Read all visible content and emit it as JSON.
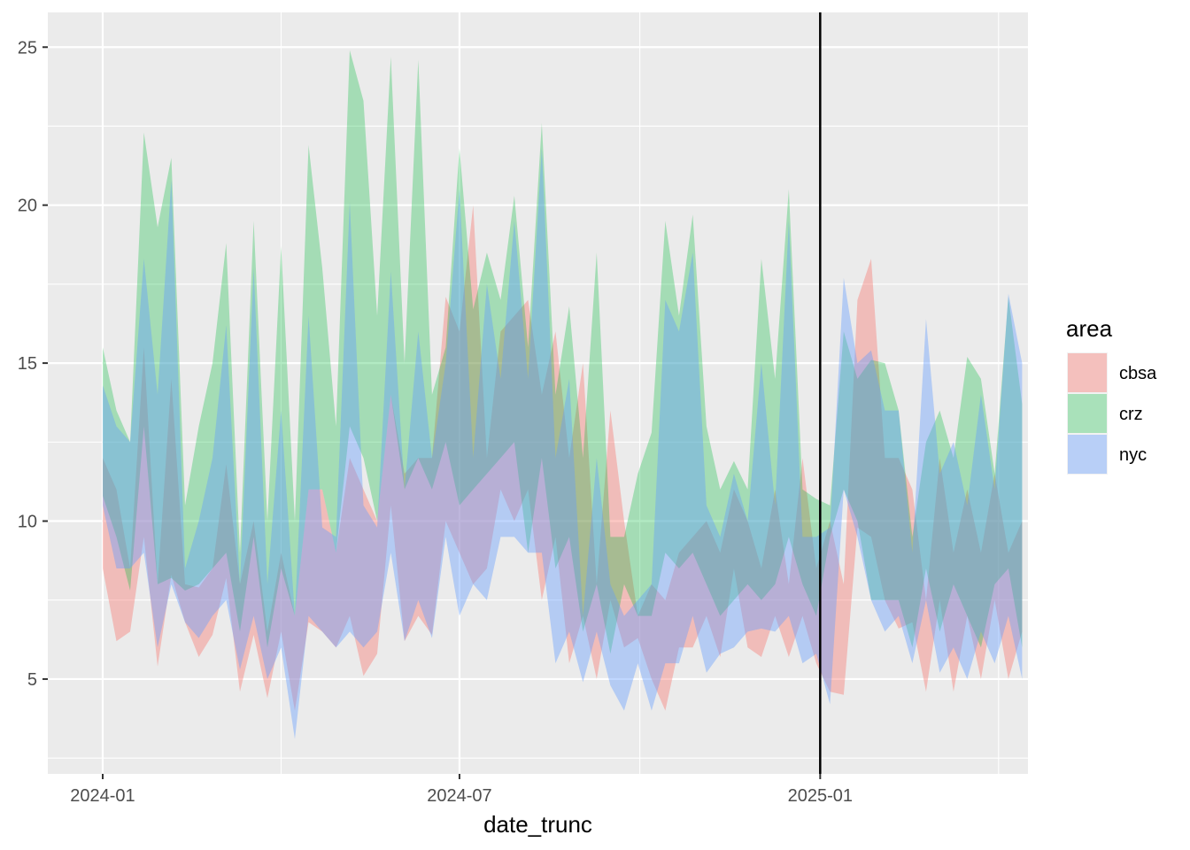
{
  "chart_data": {
    "type": "area",
    "subtype": "ribbon",
    "title": "",
    "xlabel": "date_trunc",
    "ylabel": "",
    "xlim": [
      "2023-12-04",
      "2025-04-17"
    ],
    "ylim": [
      2.0,
      26.1
    ],
    "x_ticks": [
      "2024-01-01",
      "2024-07-01",
      "2025-01-01"
    ],
    "x_tick_labels": [
      "2024-01",
      "2024-07",
      "2025-01"
    ],
    "y_ticks": [
      5,
      10,
      15,
      20,
      25
    ],
    "y_tick_labels": [
      "5",
      "10",
      "15",
      "20",
      "25"
    ],
    "grid": true,
    "panel_background": "#EBEBEB",
    "vline": {
      "x": "2025-01-01",
      "color": "#000000"
    },
    "legend": {
      "title": "area",
      "position": "right"
    },
    "series": [
      {
        "name": "cbsa",
        "color": "#F8766D",
        "alpha": 0.4,
        "points": [
          [
            "2024-01-01",
            8.5,
            12.0
          ],
          [
            "2024-01-08",
            6.2,
            11.0
          ],
          [
            "2024-01-15",
            6.5,
            8.5
          ],
          [
            "2024-01-22",
            9.5,
            15.5
          ],
          [
            "2024-01-29",
            5.4,
            8.0
          ],
          [
            "2024-02-05",
            8.3,
            14.5
          ],
          [
            "2024-02-12",
            6.8,
            8.0
          ],
          [
            "2024-02-19",
            5.7,
            7.9
          ],
          [
            "2024-02-26",
            6.4,
            8.5
          ],
          [
            "2024-03-04",
            8.2,
            11.8
          ],
          [
            "2024-03-11",
            4.6,
            8.0
          ],
          [
            "2024-03-18",
            6.4,
            10.0
          ],
          [
            "2024-03-25",
            4.4,
            6.5
          ],
          [
            "2024-04-01",
            6.5,
            9.0
          ],
          [
            "2024-04-08",
            4.0,
            7.0
          ],
          [
            "2024-04-15",
            6.8,
            11.0
          ],
          [
            "2024-04-22",
            6.5,
            11.0
          ],
          [
            "2024-04-29",
            6.0,
            9.0
          ],
          [
            "2024-05-06",
            7.0,
            12.0
          ],
          [
            "2024-05-13",
            5.1,
            11.0
          ],
          [
            "2024-05-20",
            5.8,
            10.0
          ],
          [
            "2024-05-27",
            10.5,
            14.0
          ],
          [
            "2024-06-03",
            6.2,
            11.5
          ],
          [
            "2024-06-10",
            7.0,
            12.0
          ],
          [
            "2024-06-17",
            6.4,
            12.0
          ],
          [
            "2024-06-24",
            10.0,
            17.1
          ],
          [
            "2024-07-01",
            9.0,
            16.0
          ],
          [
            "2024-07-08",
            8.0,
            20.0
          ],
          [
            "2024-07-15",
            8.5,
            12.0
          ],
          [
            "2024-07-22",
            11.0,
            16.0
          ],
          [
            "2024-07-29",
            10.0,
            16.5
          ],
          [
            "2024-08-05",
            11.0,
            17.0
          ],
          [
            "2024-08-12",
            7.5,
            14.0
          ],
          [
            "2024-08-19",
            9.5,
            16.0
          ],
          [
            "2024-08-26",
            5.5,
            12.0
          ],
          [
            "2024-09-02",
            7.0,
            15.0
          ],
          [
            "2024-09-09",
            5.0,
            8.0
          ],
          [
            "2024-09-16",
            7.5,
            13.5
          ],
          [
            "2024-09-23",
            6.0,
            10.0
          ],
          [
            "2024-09-30",
            6.3,
            7.0
          ],
          [
            "2024-10-07",
            5.0,
            8.0
          ],
          [
            "2024-10-14",
            4.0,
            7.5
          ],
          [
            "2024-10-21",
            6.0,
            9.0
          ],
          [
            "2024-10-28",
            6.0,
            9.5
          ],
          [
            "2024-11-04",
            7.0,
            10.0
          ],
          [
            "2024-11-11",
            5.7,
            9.0
          ],
          [
            "2024-11-18",
            8.5,
            11.0
          ],
          [
            "2024-11-25",
            6.0,
            10.0
          ],
          [
            "2024-12-02",
            5.7,
            8.5
          ],
          [
            "2024-12-09",
            7.0,
            11.0
          ],
          [
            "2024-12-16",
            5.7,
            8.0
          ],
          [
            "2024-12-23",
            7.0,
            12.0
          ],
          [
            "2024-12-30",
            5.5,
            8.5
          ],
          [
            "2025-01-06",
            4.6,
            10.0
          ],
          [
            "2025-01-13",
            4.5,
            8.0
          ],
          [
            "2025-01-20",
            9.8,
            17.0
          ],
          [
            "2025-01-27",
            9.5,
            18.3
          ],
          [
            "2025-02-03",
            7.5,
            12.0
          ],
          [
            "2025-02-10",
            6.6,
            12.0
          ],
          [
            "2025-02-17",
            6.8,
            11.0
          ],
          [
            "2025-02-24",
            4.6,
            7.5
          ],
          [
            "2025-03-03",
            7.5,
            12.0
          ],
          [
            "2025-03-10",
            4.6,
            9.0
          ],
          [
            "2025-03-17",
            7.0,
            11.0
          ],
          [
            "2025-03-24",
            5.0,
            9.0
          ],
          [
            "2025-03-31",
            7.5,
            11.5
          ],
          [
            "2025-04-07",
            5.0,
            9.0
          ],
          [
            "2025-04-14",
            6.5,
            10.0
          ]
        ]
      },
      {
        "name": "crz",
        "color": "#00BA38",
        "alpha": 0.3,
        "points": [
          [
            "2024-01-01",
            10.8,
            15.5
          ],
          [
            "2024-01-08",
            9.5,
            13.5
          ],
          [
            "2024-01-15",
            7.8,
            12.5
          ],
          [
            "2024-01-22",
            13.0,
            22.3
          ],
          [
            "2024-01-29",
            8.0,
            19.3
          ],
          [
            "2024-02-05",
            8.2,
            21.5
          ],
          [
            "2024-02-12",
            7.8,
            10.5
          ],
          [
            "2024-02-19",
            8.0,
            13.0
          ],
          [
            "2024-02-26",
            8.5,
            15.0
          ],
          [
            "2024-03-04",
            9.0,
            18.8
          ],
          [
            "2024-03-11",
            6.5,
            9.0
          ],
          [
            "2024-03-18",
            9.5,
            19.5
          ],
          [
            "2024-03-25",
            6.0,
            10.0
          ],
          [
            "2024-04-01",
            8.5,
            18.7
          ],
          [
            "2024-04-08",
            7.0,
            10.0
          ],
          [
            "2024-04-15",
            11.0,
            21.9
          ],
          [
            "2024-04-22",
            11.0,
            18.0
          ],
          [
            "2024-04-29",
            9.0,
            13.0
          ],
          [
            "2024-05-06",
            13.0,
            24.9
          ],
          [
            "2024-05-13",
            12.0,
            23.3
          ],
          [
            "2024-05-20",
            10.0,
            16.5
          ],
          [
            "2024-05-27",
            14.0,
            24.7
          ],
          [
            "2024-06-03",
            11.0,
            15.0
          ],
          [
            "2024-06-10",
            12.0,
            24.6
          ],
          [
            "2024-06-17",
            11.0,
            14.0
          ],
          [
            "2024-06-24",
            12.5,
            15.5
          ],
          [
            "2024-07-01",
            10.5,
            21.8
          ],
          [
            "2024-07-08",
            11.0,
            16.7
          ],
          [
            "2024-07-15",
            11.5,
            18.5
          ],
          [
            "2024-07-22",
            12.0,
            17.0
          ],
          [
            "2024-07-29",
            12.5,
            20.3
          ],
          [
            "2024-08-05",
            9.0,
            15.5
          ],
          [
            "2024-08-12",
            12.0,
            22.6
          ],
          [
            "2024-08-19",
            8.5,
            14.0
          ],
          [
            "2024-08-26",
            9.5,
            16.8
          ],
          [
            "2024-09-02",
            6.5,
            12.0
          ],
          [
            "2024-09-09",
            8.0,
            18.5
          ],
          [
            "2024-09-16",
            5.8,
            9.5
          ],
          [
            "2024-09-23",
            8.0,
            9.5
          ],
          [
            "2024-09-30",
            7.0,
            11.5
          ],
          [
            "2024-10-07",
            7.0,
            12.8
          ],
          [
            "2024-10-14",
            9.0,
            19.5
          ],
          [
            "2024-10-21",
            8.5,
            16.5
          ],
          [
            "2024-10-28",
            9.0,
            19.7
          ],
          [
            "2024-11-04",
            8.0,
            13.0
          ],
          [
            "2024-11-11",
            7.0,
            11.0
          ],
          [
            "2024-11-18",
            7.5,
            11.9
          ],
          [
            "2024-11-25",
            8.0,
            11.0
          ],
          [
            "2024-12-02",
            7.5,
            18.3
          ],
          [
            "2024-12-09",
            8.0,
            14.5
          ],
          [
            "2024-12-16",
            9.5,
            20.5
          ],
          [
            "2024-12-23",
            8.0,
            11.0
          ],
          [
            "2024-12-30",
            7.0,
            10.7
          ],
          [
            "2025-01-06",
            9.5,
            10.5
          ],
          [
            "2025-01-13",
            11.0,
            16.0
          ],
          [
            "2025-01-20",
            10.0,
            14.5
          ],
          [
            "2025-01-27",
            7.5,
            15.1
          ],
          [
            "2025-02-03",
            7.5,
            15.0
          ],
          [
            "2025-02-10",
            7.5,
            13.5
          ],
          [
            "2025-02-17",
            6.0,
            9.5
          ],
          [
            "2025-02-24",
            8.5,
            12.5
          ],
          [
            "2025-03-03",
            6.5,
            13.5
          ],
          [
            "2025-03-10",
            8.0,
            12.0
          ],
          [
            "2025-03-17",
            7.0,
            15.2
          ],
          [
            "2025-03-24",
            6.0,
            14.5
          ],
          [
            "2025-03-31",
            8.0,
            11.5
          ],
          [
            "2025-04-07",
            8.5,
            17.1
          ],
          [
            "2025-04-14",
            6.0,
            13.7
          ]
        ]
      },
      {
        "name": "nyc",
        "color": "#619CFF",
        "alpha": 0.4,
        "points": [
          [
            "2024-01-01",
            10.5,
            14.3
          ],
          [
            "2024-01-08",
            8.5,
            13.0
          ],
          [
            "2024-01-15",
            8.5,
            12.5
          ],
          [
            "2024-01-22",
            9.0,
            18.3
          ],
          [
            "2024-01-29",
            6.0,
            14.0
          ],
          [
            "2024-02-05",
            8.0,
            20.8
          ],
          [
            "2024-02-12",
            6.8,
            8.5
          ],
          [
            "2024-02-19",
            6.3,
            10.0
          ],
          [
            "2024-02-26",
            7.0,
            12.0
          ],
          [
            "2024-03-04",
            7.5,
            16.2
          ],
          [
            "2024-03-11",
            5.3,
            8.0
          ],
          [
            "2024-03-18",
            7.0,
            18.0
          ],
          [
            "2024-03-25",
            5.0,
            8.0
          ],
          [
            "2024-04-01",
            6.0,
            13.5
          ],
          [
            "2024-04-08",
            3.1,
            7.0
          ],
          [
            "2024-04-15",
            7.0,
            16.5
          ],
          [
            "2024-04-22",
            6.5,
            9.8
          ],
          [
            "2024-04-29",
            6.0,
            9.5
          ],
          [
            "2024-05-06",
            6.5,
            20.1
          ],
          [
            "2024-05-13",
            6.0,
            10.5
          ],
          [
            "2024-05-20",
            6.5,
            9.8
          ],
          [
            "2024-05-27",
            9.0,
            17.9
          ],
          [
            "2024-06-03",
            6.2,
            11.0
          ],
          [
            "2024-06-10",
            7.5,
            16.0
          ],
          [
            "2024-06-17",
            6.3,
            12.0
          ],
          [
            "2024-06-24",
            9.5,
            15.0
          ],
          [
            "2024-07-01",
            7.0,
            20.5
          ],
          [
            "2024-07-08",
            8.0,
            12.0
          ],
          [
            "2024-07-15",
            7.5,
            17.5
          ],
          [
            "2024-07-22",
            9.5,
            14.5
          ],
          [
            "2024-07-29",
            9.5,
            19.5
          ],
          [
            "2024-08-05",
            9.0,
            14.5
          ],
          [
            "2024-08-12",
            9.0,
            21.8
          ],
          [
            "2024-08-19",
            5.5,
            12.0
          ],
          [
            "2024-08-26",
            6.5,
            14.5
          ],
          [
            "2024-09-02",
            4.9,
            7.0
          ],
          [
            "2024-09-09",
            6.5,
            12.0
          ],
          [
            "2024-09-16",
            4.8,
            8.0
          ],
          [
            "2024-09-23",
            4.0,
            7.0
          ],
          [
            "2024-09-30",
            5.5,
            7.5
          ],
          [
            "2024-10-07",
            4.0,
            8.0
          ],
          [
            "2024-10-14",
            5.5,
            17.0
          ],
          [
            "2024-10-21",
            5.5,
            16.0
          ],
          [
            "2024-10-28",
            7.0,
            18.5
          ],
          [
            "2024-11-04",
            5.2,
            10.5
          ],
          [
            "2024-11-11",
            5.8,
            9.5
          ],
          [
            "2024-11-18",
            6.0,
            11.5
          ],
          [
            "2024-11-25",
            6.5,
            10.0
          ],
          [
            "2024-12-02",
            6.6,
            15.0
          ],
          [
            "2024-12-09",
            6.5,
            10.5
          ],
          [
            "2024-12-16",
            7.0,
            19.5
          ],
          [
            "2024-12-23",
            5.5,
            9.5
          ],
          [
            "2024-12-30",
            5.8,
            9.5
          ],
          [
            "2025-01-06",
            4.2,
            9.8
          ],
          [
            "2025-01-13",
            11.0,
            17.7
          ],
          [
            "2025-01-20",
            9.5,
            15.0
          ],
          [
            "2025-01-27",
            7.5,
            15.4
          ],
          [
            "2025-02-03",
            6.5,
            13.5
          ],
          [
            "2025-02-10",
            7.0,
            13.5
          ],
          [
            "2025-02-17",
            5.5,
            9.0
          ],
          [
            "2025-02-24",
            7.5,
            16.4
          ],
          [
            "2025-03-03",
            5.2,
            11.5
          ],
          [
            "2025-03-10",
            6.0,
            12.5
          ],
          [
            "2025-03-17",
            5.0,
            10.5
          ],
          [
            "2025-03-24",
            6.5,
            14.0
          ],
          [
            "2025-03-31",
            5.5,
            11.0
          ],
          [
            "2025-04-07",
            7.0,
            17.2
          ],
          [
            "2025-04-14",
            5.0,
            15.0
          ]
        ]
      }
    ]
  }
}
